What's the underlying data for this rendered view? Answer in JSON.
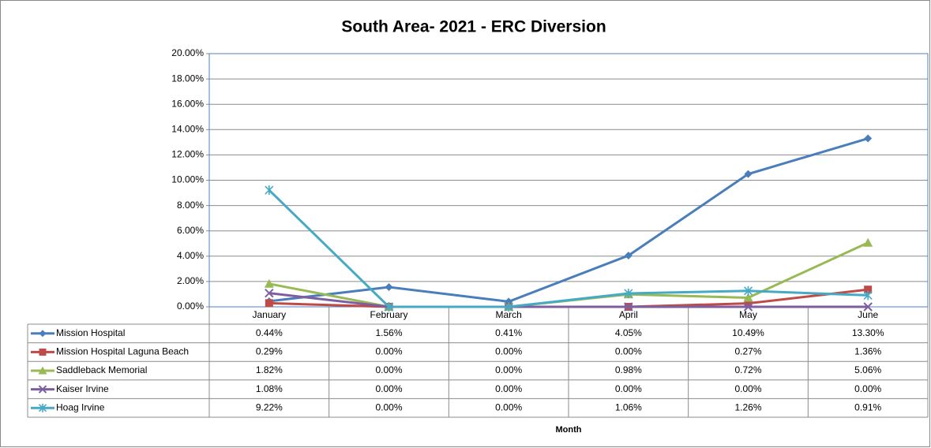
{
  "chart_data": {
    "type": "line",
    "title": "South Area- 2021  - ERC Diversion",
    "x_label": "Month",
    "categories": [
      "January",
      "February",
      "March",
      "April",
      "May",
      "June"
    ],
    "ylim": [
      0,
      20
    ],
    "yticks": [
      {
        "value": 0,
        "label": "0.00%"
      },
      {
        "value": 2,
        "label": "2.00%"
      },
      {
        "value": 4,
        "label": "4.00%"
      },
      {
        "value": 6,
        "label": "6.00%"
      },
      {
        "value": 8,
        "label": "8.00%"
      },
      {
        "value": 10,
        "label": "10.00%"
      },
      {
        "value": 12,
        "label": "12.00%"
      },
      {
        "value": 14,
        "label": "14.00%"
      },
      {
        "value": 16,
        "label": "16.00%"
      },
      {
        "value": 18,
        "label": "18.00%"
      },
      {
        "value": 20,
        "label": "20.00%"
      }
    ],
    "grid": true,
    "data_table": true,
    "series": [
      {
        "name": "Mission Hospital",
        "color": "#4a7ebb",
        "marker": "diamond",
        "values": [
          0.44,
          1.56,
          0.41,
          4.05,
          10.49,
          13.3
        ],
        "value_labels": [
          "0.44%",
          "1.56%",
          "0.41%",
          "4.05%",
          "10.49%",
          "13.30%"
        ]
      },
      {
        "name": "Mission Hospital Laguna Beach",
        "color": "#be4b48",
        "marker": "square",
        "values": [
          0.29,
          0.0,
          0.0,
          0.0,
          0.27,
          1.36
        ],
        "value_labels": [
          "0.29%",
          "0.00%",
          "0.00%",
          "0.00%",
          "0.27%",
          "1.36%"
        ]
      },
      {
        "name": "Saddleback Memorial",
        "color": "#98b954",
        "marker": "triangle",
        "values": [
          1.82,
          0.0,
          0.0,
          0.98,
          0.72,
          5.06
        ],
        "value_labels": [
          "1.82%",
          "0.00%",
          "0.00%",
          "0.98%",
          "0.72%",
          "5.06%"
        ]
      },
      {
        "name": "Kaiser Irvine",
        "color": "#7d5fa0",
        "marker": "x",
        "values": [
          1.08,
          0.0,
          0.0,
          0.0,
          0.0,
          0.0
        ],
        "value_labels": [
          "1.08%",
          "0.00%",
          "0.00%",
          "0.00%",
          "0.00%",
          "0.00%"
        ]
      },
      {
        "name": "Hoag Irvine",
        "color": "#46aac5",
        "marker": "star",
        "values": [
          9.22,
          0.0,
          0.0,
          1.06,
          1.26,
          0.91
        ],
        "value_labels": [
          "9.22%",
          "0.00%",
          "0.00%",
          "1.06%",
          "1.26%",
          "0.91%"
        ]
      }
    ]
  }
}
